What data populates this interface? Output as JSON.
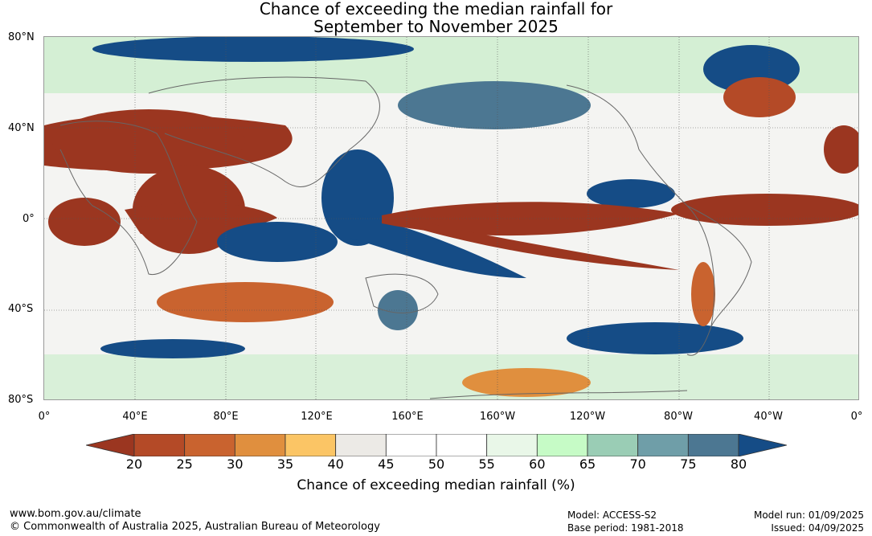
{
  "title_line1": "Chance of exceeding the median rainfall for",
  "title_line2": "September to November 2025",
  "lat_labels": [
    "80°N",
    "40°N",
    "0°",
    "40°S",
    "80°S"
  ],
  "lon_labels": [
    "0°",
    "40°E",
    "80°E",
    "120°E",
    "160°E",
    "160°W",
    "120°W",
    "80°W",
    "40°W",
    "0°"
  ],
  "colorbar": {
    "ticks": [
      "20",
      "25",
      "30",
      "35",
      "40",
      "45",
      "50",
      "55",
      "60",
      "65",
      "70",
      "75",
      "80"
    ],
    "colors": [
      "#9b3620",
      "#b44a27",
      "#c9632f",
      "#e08f3e",
      "#fbc565",
      "#eceae6",
      "#ffffff",
      "#ffffff",
      "#e9f7e8",
      "#c6fbc6",
      "#9acdb5",
      "#6f9ea8",
      "#4c7792",
      "#154c86"
    ],
    "label": "Chance of exceeding median rainfall (%)"
  },
  "footer": {
    "url": "www.bom.gov.au/climate",
    "copyright": "© Commonwealth of Australia 2025, Australian Bureau of Meteorology",
    "model": "Model: ACCESS-S2",
    "base_period": "Base period: 1981-2018",
    "model_run": "Model run: 01/09/2025",
    "issued": "Issued: 04/09/2025"
  }
}
